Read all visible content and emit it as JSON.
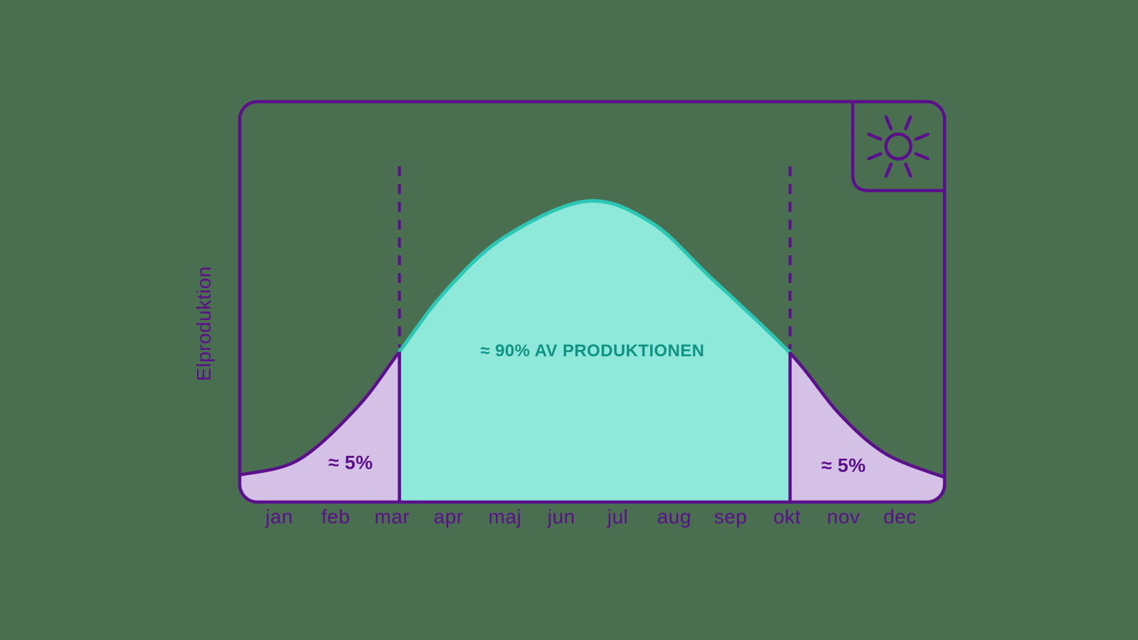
{
  "colors": {
    "background": "#4A6E50",
    "purple": "#5B0F8B",
    "purple_fill": "#D5C0E6",
    "teal_fill": "#8FE9DB",
    "teal_stroke": "#2CC8B6",
    "teal_text": "#0E9384"
  },
  "chart_data": {
    "type": "area",
    "title": "",
    "xlabel": "",
    "ylabel": "Elproduktion",
    "categories": [
      "jan",
      "feb",
      "mar",
      "apr",
      "maj",
      "jun",
      "jul",
      "aug",
      "sep",
      "okt",
      "nov",
      "dec"
    ],
    "curve_points": [
      [
        0,
        0.09
      ],
      [
        1,
        0.14
      ],
      [
        2,
        0.315
      ],
      [
        2.72,
        0.5
      ],
      [
        3.5,
        0.7
      ],
      [
        4.5,
        0.88
      ],
      [
        5.9,
        1.0
      ],
      [
        7,
        0.93
      ],
      [
        8,
        0.75
      ],
      [
        9.37,
        0.495
      ],
      [
        10.2,
        0.295
      ],
      [
        11,
        0.16
      ],
      [
        12,
        0.082
      ]
    ],
    "boundaries_months": [
      2.72,
      9.37
    ],
    "regions": [
      {
        "name": "left-tail",
        "label": "≈ 5%"
      },
      {
        "name": "main",
        "label": "≈ 90% AV PRODUKTIONEN"
      },
      {
        "name": "right-tail",
        "label": "≈ 5%"
      }
    ],
    "grid": false,
    "legend": "none",
    "icon": "sun"
  }
}
